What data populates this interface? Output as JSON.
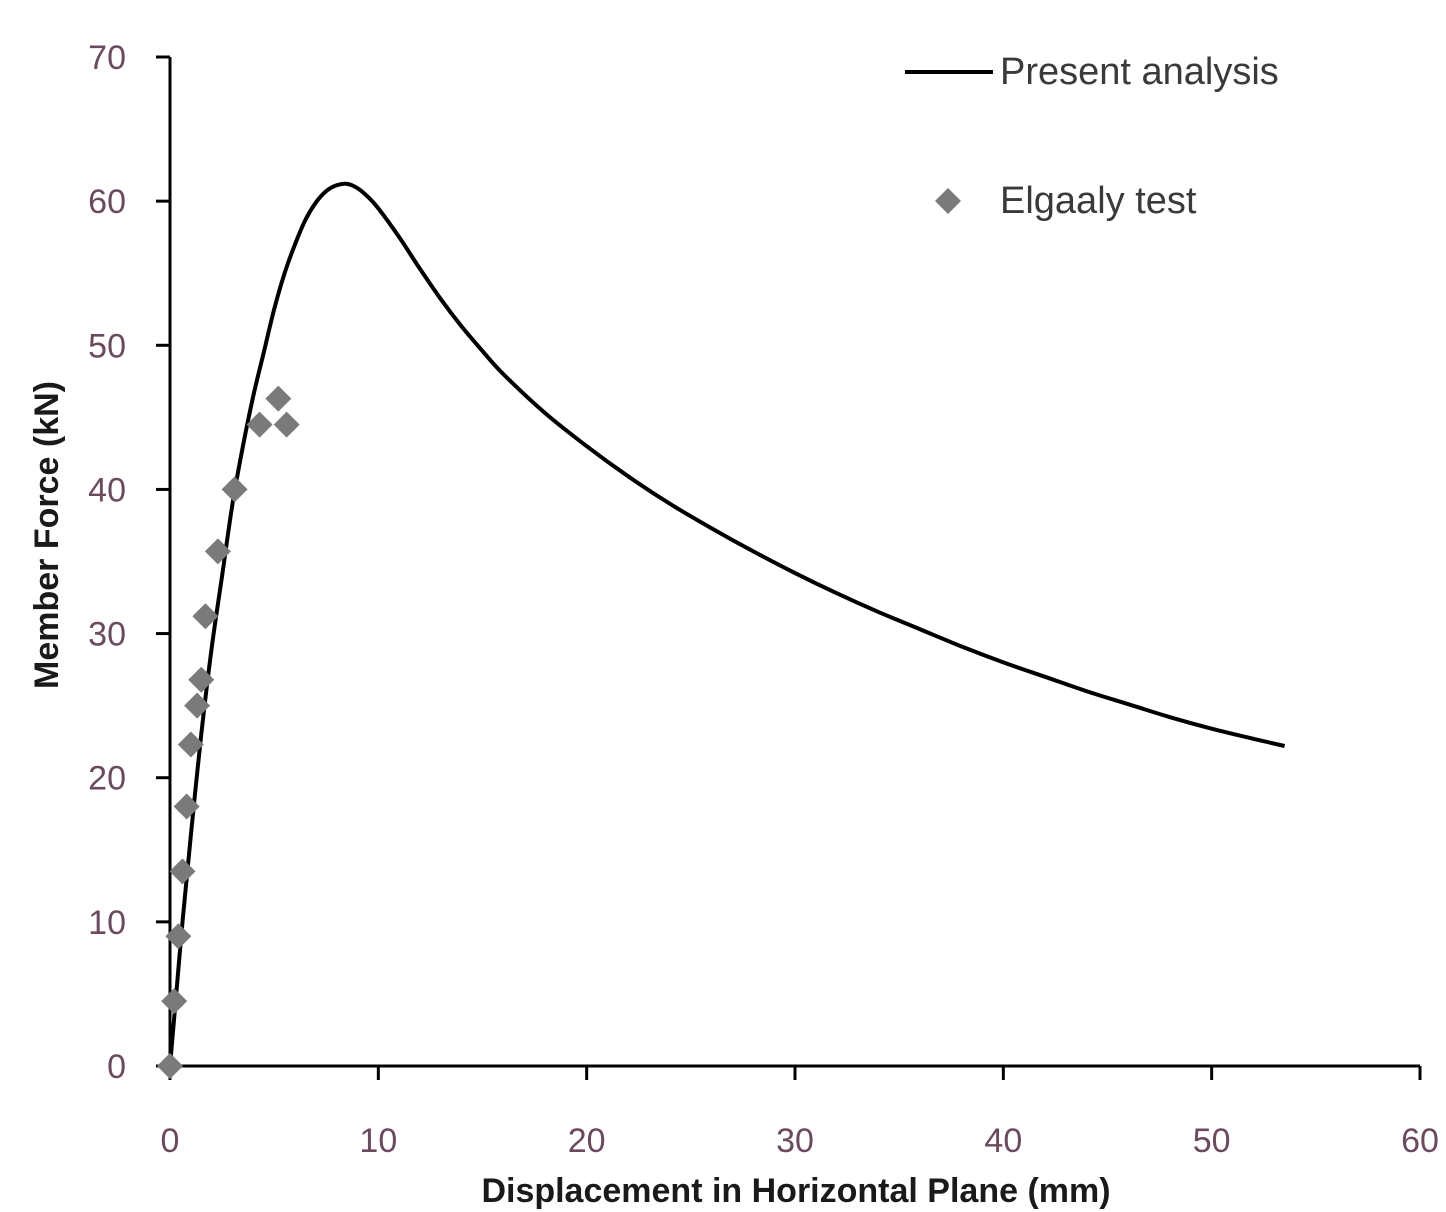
{
  "chart_data": {
    "type": "scatter",
    "title": "",
    "xlabel": "Displacement in Horizontal Plane (mm)",
    "ylabel": "Member Force (kN)",
    "xlim": [
      0,
      60
    ],
    "ylim": [
      0,
      70
    ],
    "xticks": [
      0,
      10,
      20,
      30,
      40,
      50,
      60
    ],
    "yticks": [
      0,
      10,
      20,
      30,
      40,
      50,
      60,
      70
    ],
    "xtick_labels": [
      "0",
      "10",
      "20",
      "30",
      "40",
      "50",
      "60"
    ],
    "ytick_labels": [
      "0",
      "10",
      "20",
      "30",
      "40",
      "50",
      "60",
      "70"
    ],
    "grid": false,
    "legend_position": "top-right",
    "series": [
      {
        "name": "Present analysis",
        "kind": "line",
        "color": "#000000",
        "x": [
          0,
          0.3,
          0.6,
          1.0,
          1.5,
          2.0,
          2.5,
          3.0,
          3.5,
          4.0,
          4.5,
          5.0,
          5.5,
          6.0,
          6.5,
          7.0,
          7.5,
          8.0,
          8.5,
          9.0,
          9.5,
          10.0,
          11,
          12,
          13,
          14,
          15,
          16,
          18,
          20,
          22,
          24,
          26,
          28,
          30,
          32,
          34,
          36,
          38,
          40,
          42,
          44,
          46,
          48,
          50,
          52,
          53.5
        ],
        "y": [
          0,
          5,
          10,
          16,
          23,
          29,
          34,
          39,
          43,
          46.5,
          49.5,
          52.5,
          55,
          57,
          58.7,
          59.9,
          60.7,
          61.1,
          61.2,
          60.9,
          60.3,
          59.5,
          57.5,
          55.3,
          53.2,
          51.3,
          49.6,
          48.0,
          45.3,
          43.0,
          40.9,
          39.0,
          37.3,
          35.7,
          34.2,
          32.8,
          31.5,
          30.3,
          29.1,
          28.0,
          27.0,
          26.0,
          25.1,
          24.2,
          23.4,
          22.7,
          22.2
        ]
      },
      {
        "name": "Elgaaly test",
        "kind": "scatter",
        "color": "#7a7a7a",
        "x": [
          0,
          0.2,
          0.4,
          0.6,
          0.8,
          1.0,
          1.3,
          1.5,
          1.7,
          2.3,
          3.1,
          4.3,
          5.2,
          5.6
        ],
        "y": [
          0,
          4.5,
          9,
          13.5,
          18,
          22.3,
          25,
          26.8,
          31.2,
          35.7,
          40,
          44.5,
          46.3,
          44.5
        ]
      }
    ]
  }
}
